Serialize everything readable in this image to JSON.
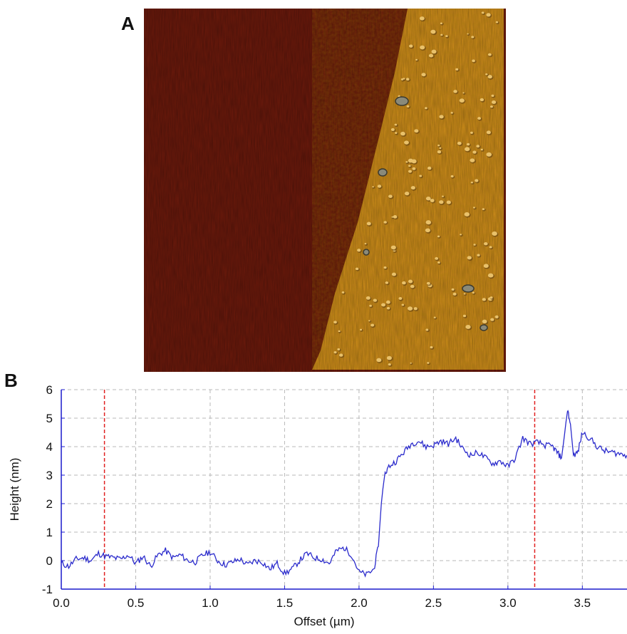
{
  "panels": {
    "a_label": "A",
    "b_label": "B"
  },
  "afm_image": {
    "substrate_color": "#6e1a0c",
    "film_color": "#d9921f",
    "particle_color": "#e9c16a",
    "shadow_color": "#5a3b10"
  },
  "chart_data": {
    "type": "line",
    "xlabel": "Offset (µm)",
    "ylabel": "Height (nm)",
    "xlim": [
      0.0,
      3.8
    ],
    "ylim": [
      -1,
      6
    ],
    "xticks": [
      "0.0",
      "0.5",
      "1.0",
      "1.5",
      "2.0",
      "2.5",
      "3.0",
      "3.5"
    ],
    "xtick_values": [
      0.0,
      0.5,
      1.0,
      1.5,
      2.0,
      2.5,
      3.0,
      3.5
    ],
    "yticks": [
      "-1",
      "0",
      "1",
      "2",
      "3",
      "4",
      "5",
      "6"
    ],
    "ytick_values": [
      -1,
      0,
      1,
      2,
      3,
      4,
      5,
      6
    ],
    "grid": true,
    "line_color": "#2b2bcc",
    "marker_color": "#e02020",
    "markers_x": [
      0.29,
      3.18
    ],
    "series": [
      {
        "x": [
          0.0,
          0.05,
          0.1,
          0.15,
          0.2,
          0.25,
          0.3,
          0.35,
          0.4,
          0.45,
          0.5,
          0.55,
          0.6,
          0.65,
          0.7,
          0.75,
          0.8,
          0.85,
          0.9,
          0.95,
          1.0,
          1.05,
          1.1,
          1.15,
          1.2,
          1.25,
          1.3,
          1.35,
          1.4,
          1.45,
          1.5,
          1.55,
          1.6,
          1.65,
          1.7,
          1.75,
          1.8,
          1.85,
          1.9,
          1.95,
          2.0,
          2.05,
          2.1,
          2.13,
          2.15,
          2.17,
          2.2,
          2.25,
          2.3,
          2.35,
          2.4,
          2.45,
          2.5,
          2.55,
          2.6,
          2.65,
          2.7,
          2.75,
          2.8,
          2.85,
          2.9,
          2.95,
          3.0,
          3.05,
          3.1,
          3.15,
          3.2,
          3.25,
          3.3,
          3.33,
          3.36,
          3.38,
          3.4,
          3.42,
          3.44,
          3.47,
          3.5,
          3.55,
          3.6,
          3.65,
          3.7,
          3.75,
          3.8
        ],
        "y": [
          -0.1,
          -0.2,
          0.05,
          0.1,
          0.0,
          0.25,
          0.15,
          0.1,
          0.05,
          0.2,
          -0.1,
          0.15,
          -0.2,
          0.2,
          0.35,
          0.1,
          0.2,
          0.0,
          -0.05,
          0.2,
          0.3,
          0.0,
          -0.15,
          -0.05,
          0.05,
          -0.15,
          0.0,
          -0.05,
          -0.3,
          -0.1,
          -0.45,
          -0.3,
          0.0,
          0.25,
          0.1,
          0.05,
          -0.1,
          0.35,
          0.45,
          0.2,
          -0.4,
          -0.5,
          -0.3,
          0.5,
          2.0,
          3.0,
          3.3,
          3.5,
          3.8,
          4.1,
          4.2,
          4.0,
          4.05,
          4.2,
          4.1,
          4.3,
          3.9,
          3.7,
          3.8,
          3.6,
          3.4,
          3.5,
          3.3,
          3.6,
          4.3,
          4.1,
          4.15,
          4.05,
          4.0,
          3.8,
          3.6,
          4.4,
          5.3,
          4.8,
          3.7,
          3.8,
          4.5,
          4.3,
          4.0,
          3.85,
          3.8,
          3.75,
          3.7
        ]
      }
    ]
  }
}
